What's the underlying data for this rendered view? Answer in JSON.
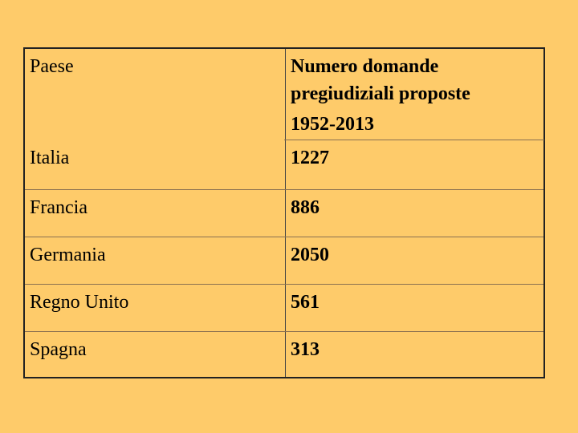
{
  "table": {
    "header": {
      "country_label": "Paese",
      "count_label_lines": [
        "Numero domande",
        "pregiudiziali proposte",
        "1952-2013"
      ]
    },
    "rows": [
      {
        "country": "Italia",
        "count": "1227"
      },
      {
        "country": "Francia",
        "count": "886"
      },
      {
        "country": "Germania",
        "count": "2050"
      },
      {
        "country": "Regno Unito",
        "count": "561"
      },
      {
        "country": "Spagna",
        "count": "313"
      }
    ]
  },
  "colors": {
    "background": "#fecb6a",
    "border": "#222222",
    "text": "#000000"
  }
}
